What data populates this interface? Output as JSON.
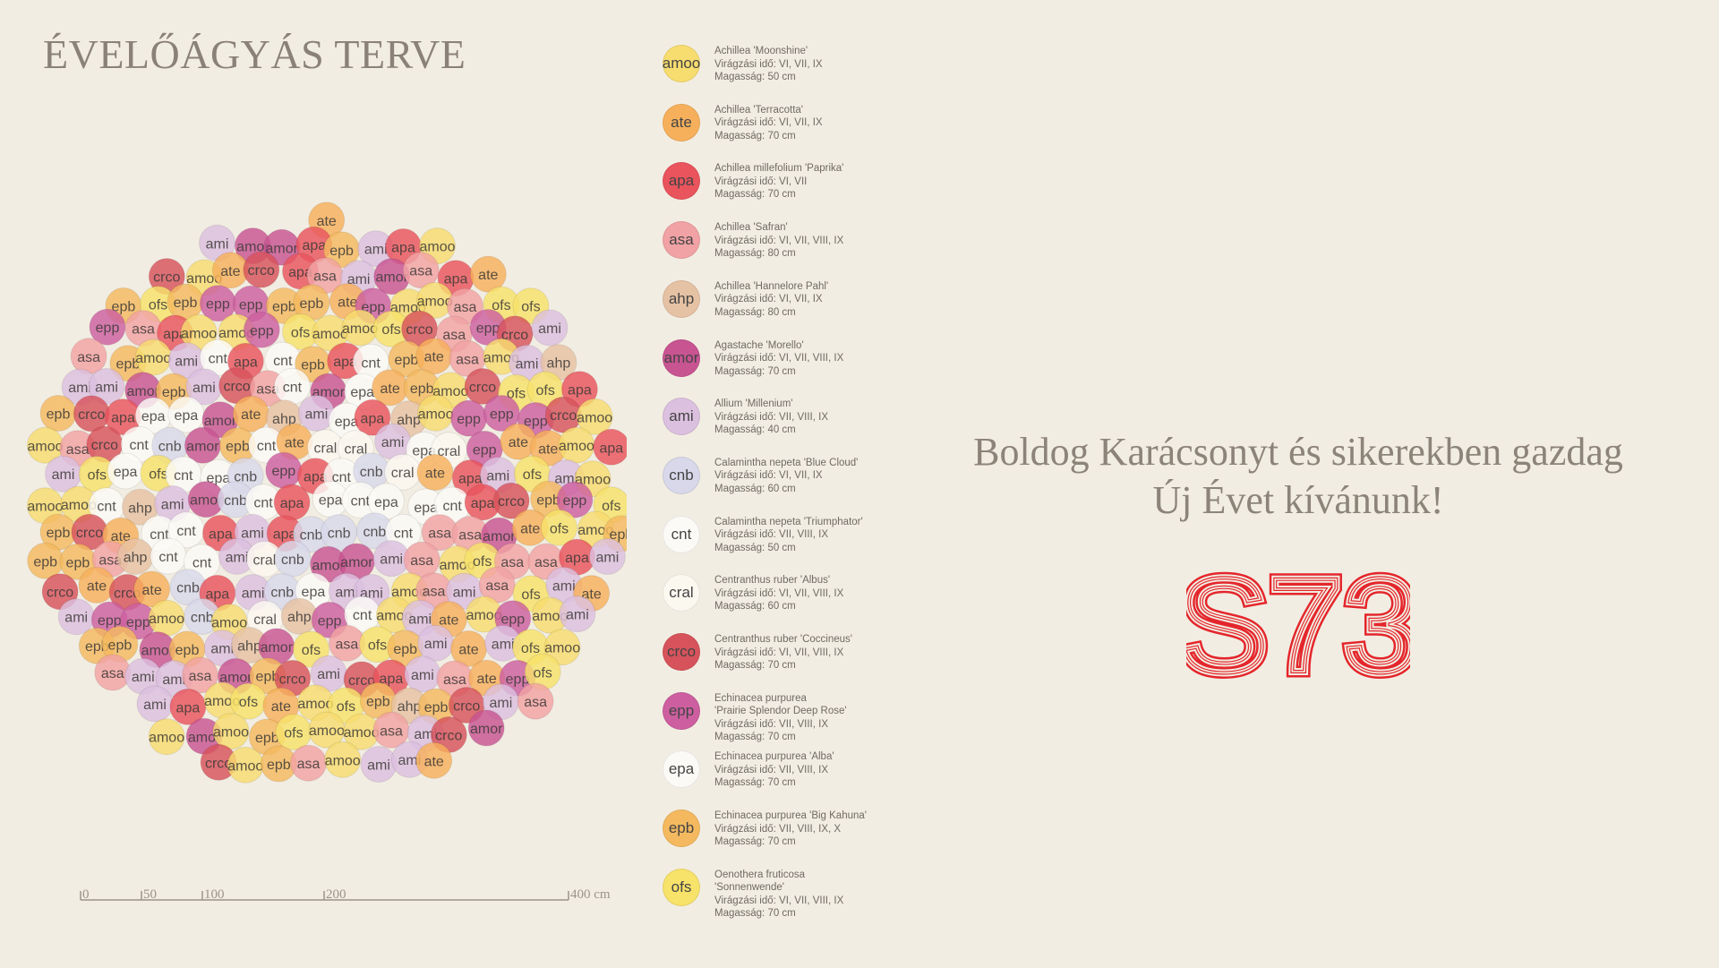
{
  "title": "ÉVELŐÁGYÁS TERVE",
  "greeting": {
    "line1": "Boldog Karácsonyt és sikerekben gazdag",
    "line2": "Új Évet kívánunk!"
  },
  "logo_text": "S73",
  "scale_bar": {
    "ticks": [
      "0",
      "50",
      "100",
      "200",
      "400 cm"
    ]
  },
  "plants": [
    {
      "code": "amoo",
      "name": "Achillea 'Moonshine'",
      "bloom": "Virágzási idő: VI, VII, IX",
      "height": "Magasság: 50 cm",
      "color": "#f7dc6f"
    },
    {
      "code": "ate",
      "name": "Achillea 'Terracotta'",
      "bloom": "Virágzási idő: VI, VII, IX",
      "height": "Magasság: 70 cm",
      "color": "#f6b05c"
    },
    {
      "code": "apa",
      "name": "Achillea millefolium 'Paprika'",
      "bloom": "Virágzási idő: VI, VII",
      "height": "Magasság: 70 cm",
      "color": "#e9545d"
    },
    {
      "code": "asa",
      "name": "Achillea 'Safran'",
      "bloom": "Virágzási idő: VI, VII, VIII, IX",
      "height": "Magasság: 80 cm",
      "color": "#f1a2a4"
    },
    {
      "code": "ahp",
      "name": "Achillea 'Hannelore Pahl'",
      "bloom": "Virágzási idő: VI, VII, IX",
      "height": "Magasság: 80 cm",
      "color": "#e6c2a4"
    },
    {
      "code": "amor",
      "name": "Agastache 'Morello'",
      "bloom": "Virágzási idő: VI, VII, VIII, IX",
      "height": "Magasság: 70 cm",
      "color": "#c85492"
    },
    {
      "code": "ami",
      "name": "Allium 'Millenium'",
      "bloom": "Virágzási idő: VII, VIII, IX",
      "height": "Magasság: 40 cm",
      "color": "#dcc0df"
    },
    {
      "code": "cnb",
      "name": "Calamintha nepeta 'Blue Cloud'",
      "bloom": "Virágzási idő: VI, VII, IX",
      "height": "Magasság: 60 cm",
      "color": "#d8d8ea"
    },
    {
      "code": "cnt",
      "name": "Calamintha nepeta 'Triumphator'",
      "bloom": "Virágzási idő: VII, VIII, IX",
      "height": "Magasság: 50 cm",
      "color": "#fbfaf7"
    },
    {
      "code": "cral",
      "name": "Centranthus ruber 'Albus'",
      "bloom": "Virágzási idő: VI, VII, VIII, IX",
      "height": "Magasság: 60 cm",
      "color": "#fbf8f0"
    },
    {
      "code": "crco",
      "name": "Centranthus ruber 'Coccineus'",
      "bloom": "Virágzási idő: VI, VII, VIII, IX",
      "height": "Magasság: 70 cm",
      "color": "#d7535c"
    },
    {
      "code": "epp",
      "name": "Echinacea purpurea",
      "name2": "'Prairie Splendor Deep Rose'",
      "bloom": "Virágzási idő: VII, VIII, IX",
      "height": "Magasság: 70 cm",
      "color": "#cd5fa0"
    },
    {
      "code": "epa",
      "name": "Echinacea purpurea 'Alba'",
      "bloom": "Virágzási idő: VII, VIII, IX",
      "height": "Magasság: 70 cm",
      "color": "#fbfaf7"
    },
    {
      "code": "epb",
      "name": "Echinacea purpurea 'Big Kahuna'",
      "bloom": "Virágzási idő: VII, VIII, IX, X",
      "height": "Magasság: 70 cm",
      "color": "#f4b95f"
    },
    {
      "code": "ofs",
      "name": "Oenothera fruticosa",
      "name2": "'Sonnenwende'",
      "bloom": "Virágzási idő: VI, VII, VIII, IX",
      "height": "Magasság: 70 cm",
      "color": "#f7e26a"
    }
  ]
}
